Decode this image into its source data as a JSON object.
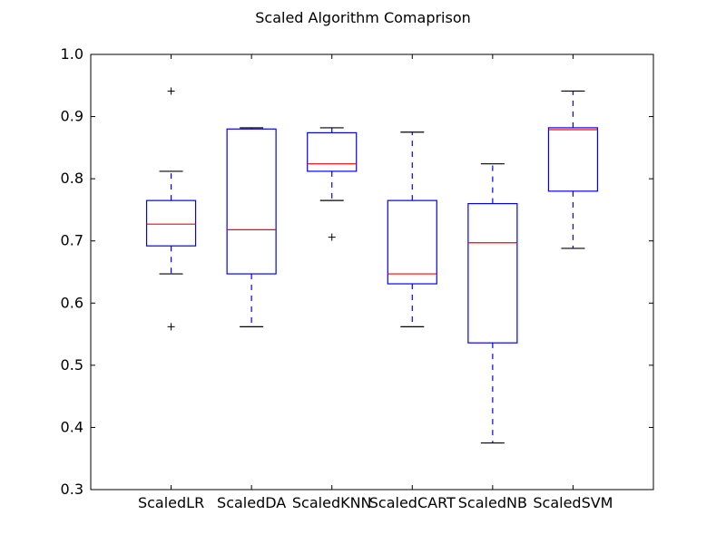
{
  "chart_data": {
    "type": "box",
    "title": "Scaled Algorithm Comaprison",
    "xlabel": "",
    "ylabel": "",
    "ylim": [
      0.3,
      1.0
    ],
    "y_ticks": [
      0.3,
      0.4,
      0.5,
      0.6,
      0.7,
      0.8,
      0.9,
      1.0
    ],
    "y_tick_labels": [
      "0.3",
      "0.4",
      "0.5",
      "0.6",
      "0.7",
      "0.8",
      "0.9",
      "1.0"
    ],
    "grid": false,
    "categories": [
      "ScaledLR",
      "ScaledDA",
      "ScaledKNN",
      "ScaledCART",
      "ScaledNB",
      "ScaledSVM"
    ],
    "boxes": [
      {
        "whisker_low": 0.647,
        "q1": 0.692,
        "median": 0.727,
        "q3": 0.765,
        "whisker_high": 0.812,
        "outliers": [
          0.941,
          0.562
        ]
      },
      {
        "whisker_low": 0.562,
        "q1": 0.647,
        "median": 0.718,
        "q3": 0.88,
        "whisker_high": 0.882,
        "outliers": []
      },
      {
        "whisker_low": 0.765,
        "q1": 0.812,
        "median": 0.824,
        "q3": 0.874,
        "whisker_high": 0.882,
        "outliers": [
          0.706
        ]
      },
      {
        "whisker_low": 0.562,
        "q1": 0.631,
        "median": 0.647,
        "q3": 0.765,
        "whisker_high": 0.875,
        "outliers": []
      },
      {
        "whisker_low": 0.375,
        "q1": 0.536,
        "median": 0.697,
        "q3": 0.76,
        "whisker_high": 0.824,
        "outliers": []
      },
      {
        "whisker_low": 0.688,
        "q1": 0.78,
        "median": 0.879,
        "q3": 0.882,
        "whisker_high": 0.941,
        "outliers": []
      }
    ],
    "colors": {
      "box": "#0000ff",
      "whisker": "#0000ff",
      "cap": "#000000",
      "median": "#ff0000",
      "outlier": "#000000",
      "axes": "#000000"
    }
  }
}
